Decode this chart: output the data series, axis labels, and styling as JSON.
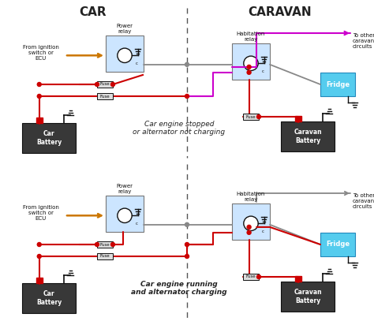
{
  "bg_color": "#ffffff",
  "car_label": "CAR",
  "caravan_label": "CARAVAN",
  "top_caption": "Car engine stopped\nor alternator not charging",
  "bottom_caption": "Car engine running\nand alternator charging",
  "fridge_label": "Fridge",
  "car_battery_label": "Car\nBattery",
  "caravan_battery_label": "Caravan\nBattery",
  "power_relay_label": "Power\nrelay",
  "habitation_relay_label": "Habitation\nrelay",
  "fuse_label": "Fuse",
  "from_ecu_label": "From ignition\nswitch or\nECU",
  "to_other_label": "To other\ncaravan\ncircuits",
  "relay_box_color": "#cce5ff",
  "fridge_color": "#55ccee",
  "battery_color": "#383838",
  "wire_red": "#cc0000",
  "wire_black": "#111111",
  "wire_gray": "#888888",
  "wire_magenta": "#cc00cc",
  "wire_orange": "#cc7700",
  "divider_color": "#555555",
  "fuse_box_color": "#dddddd"
}
